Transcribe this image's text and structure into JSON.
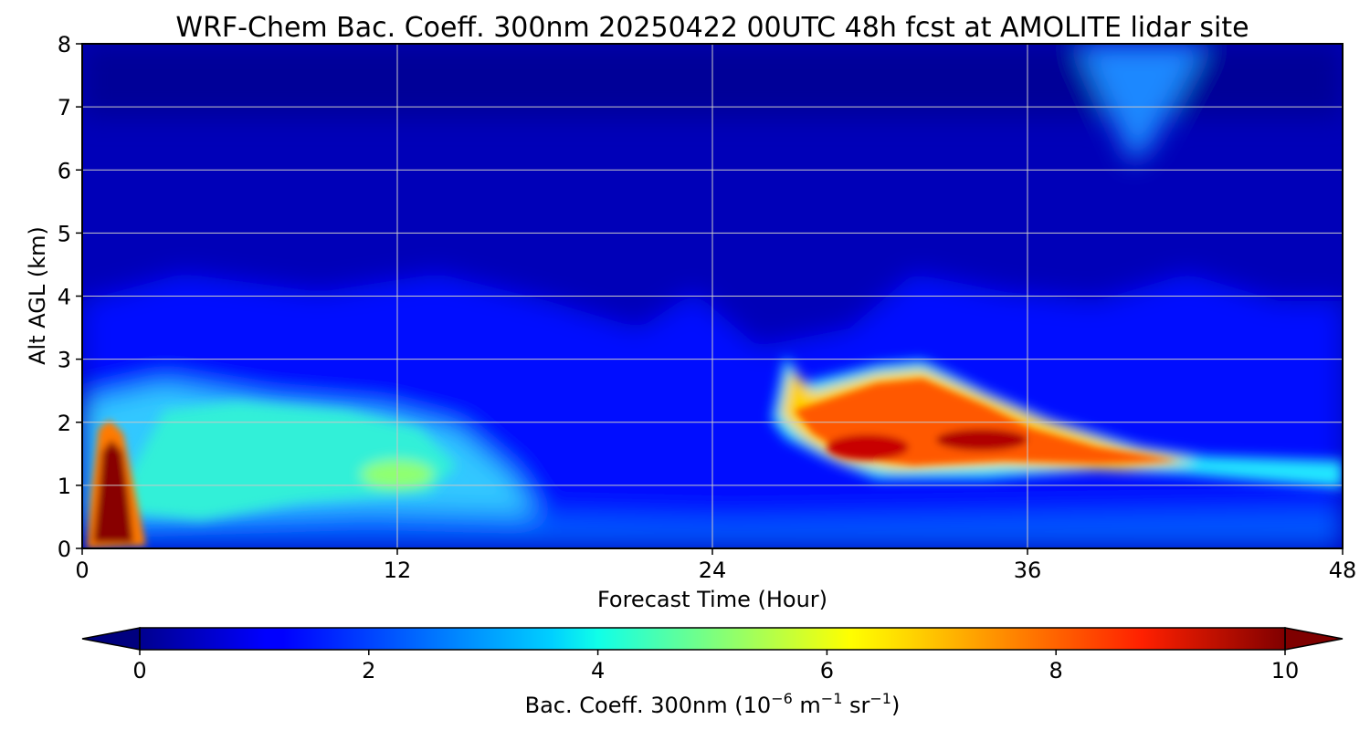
{
  "chart_data": {
    "type": "heatmap",
    "title": "WRF-Chem Bac. Coeff. 300nm  20250422 00UTC 48h fcst at AMOLITE lidar site",
    "xlabel": "Forecast Time (Hour)",
    "ylabel": "Alt AGL (km)",
    "xlim": [
      0,
      48
    ],
    "ylim": [
      0,
      8
    ],
    "xticks": [
      0,
      12,
      24,
      36,
      48
    ],
    "yticks": [
      0,
      1,
      2,
      3,
      4,
      5,
      6,
      7,
      8
    ],
    "grid": true,
    "colormap": "jet",
    "colorbar": {
      "orientation": "horizontal",
      "placement": "bottom",
      "extend": "both",
      "range": [
        0,
        10
      ],
      "ticks": [
        0,
        2,
        4,
        6,
        8,
        10
      ],
      "label_main": "Bac. Coeff. 300nm  (10",
      "label_exp1": "−6",
      "label_mid": " m",
      "label_exp2": "−1",
      "label_mid2": " sr",
      "label_exp3": "−1",
      "label_end": ")"
    },
    "features": [
      {
        "x_center": 1.0,
        "x_halfwidth": 0.8,
        "y_bottom": 0.0,
        "y_top": 2.3,
        "peak": 10.0
      },
      {
        "x_center": 12.0,
        "y_center": 1.15,
        "peak": 5.5
      },
      {
        "x_range": [
          26.5,
          44
        ],
        "y_range": [
          1.1,
          3.0
        ],
        "peak": 9.6
      },
      {
        "x_range": [
          0,
          16
        ],
        "y_range": [
          0.3,
          2.5
        ],
        "level": 3.8
      }
    ]
  }
}
